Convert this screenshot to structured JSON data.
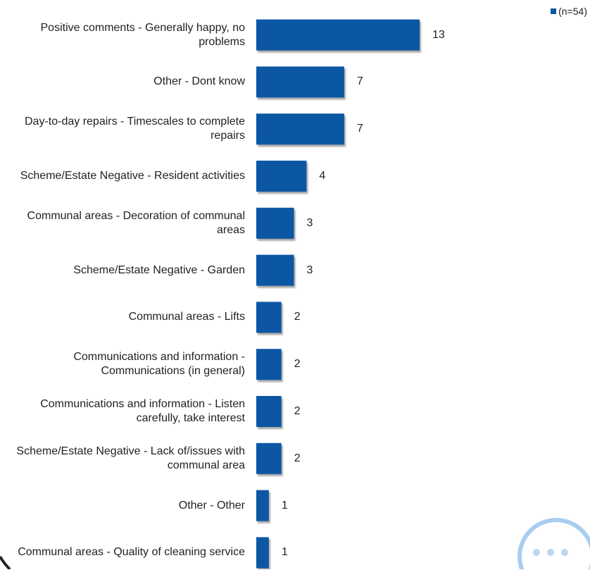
{
  "chart_data": {
    "type": "bar",
    "orientation": "horizontal",
    "categories": [
      "Positive comments - Generally happy, no problems",
      "Other - Dont know",
      "Day-to-day repairs - Timescales to complete repairs",
      "Scheme/Estate Negative - Resident activities",
      "Communal areas - Decoration of communal areas",
      "Scheme/Estate Negative - Garden",
      "Communal areas - Lifts",
      "Communications and information - Communications (in general)",
      "Communications and information - Listen carefully, take interest",
      "Scheme/Estate Negative - Lack of/issues with communal area",
      "Other - Other",
      "Communal areas - Quality of cleaning service"
    ],
    "series": [
      {
        "name": "(n=54)",
        "color": "#0b57a4",
        "values": [
          13,
          7,
          7,
          4,
          3,
          3,
          2,
          2,
          2,
          2,
          1,
          1
        ]
      }
    ],
    "legend": "top-right"
  }
}
